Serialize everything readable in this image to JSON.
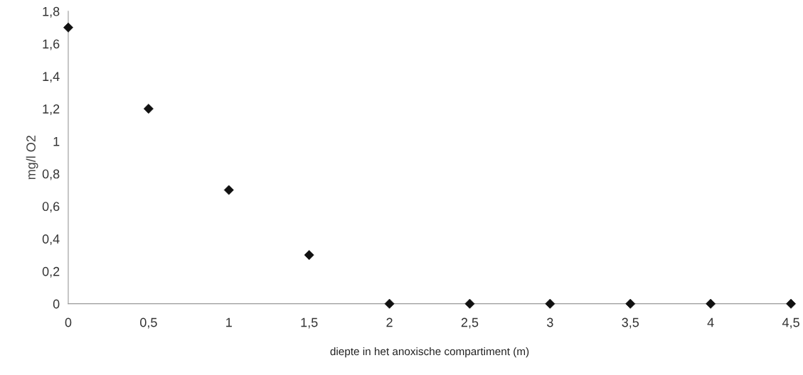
{
  "chart_data": {
    "type": "scatter",
    "xlabel": "diepte in het anoxische compartiment (m)",
    "ylabel": "mg/l O2",
    "x": [
      0,
      0.5,
      1,
      1.5,
      2,
      2.5,
      3,
      3.5,
      4,
      4.5
    ],
    "values": [
      1.7,
      1.2,
      0.7,
      0.3,
      0,
      0,
      0,
      0,
      0,
      0
    ],
    "color": "#111111",
    "marker": "diamond",
    "grid": false,
    "xlim": [
      0,
      4.5
    ],
    "ylim": [
      0,
      1.8
    ],
    "xticks": [
      0,
      {
        "value": 0.5,
        "label": "0,5"
      },
      1,
      {
        "value": 1.5,
        "label": "1,5"
      },
      2,
      {
        "value": 2.5,
        "label": "2,5"
      },
      3,
      {
        "value": 3.5,
        "label": "3,5"
      },
      4,
      {
        "value": 4.5,
        "label": "4,5"
      }
    ],
    "yticks": [
      0,
      {
        "value": 0.2,
        "label": "0,2"
      },
      {
        "value": 0.4,
        "label": "0,4"
      },
      {
        "value": 0.6,
        "label": "0,6"
      },
      {
        "value": 0.8,
        "label": "0,8"
      },
      1,
      {
        "value": 1.2,
        "label": "1,2"
      },
      {
        "value": 1.4,
        "label": "1,4"
      },
      {
        "value": 1.6,
        "label": "1,6"
      },
      {
        "value": 1.8,
        "label": "1,8"
      }
    ]
  }
}
